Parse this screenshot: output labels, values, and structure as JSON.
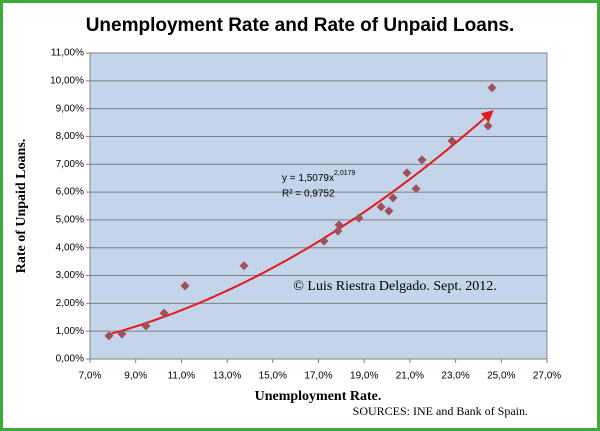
{
  "chart_data": {
    "type": "scatter",
    "title": "Unemployment Rate and Rate of Unpaid Loans.",
    "x_label": "Unemployment Rate.",
    "y_label": "Rate of Unpaid Loans.",
    "annotation": "© Luis Riestra Delgado. Sept. 2012.",
    "source": "SOURCES: INE and Bank of Spain.",
    "series": [
      {
        "color": "#a0505a",
        "x": [
          7.83,
          8.4,
          9.45,
          10.24,
          11.16,
          13.74,
          17.24,
          17.85,
          17.9,
          18.77,
          19.74,
          20.08,
          20.26,
          20.87,
          21.27,
          21.53,
          22.84,
          24.42,
          24.59
        ],
        "values": [
          0.83,
          0.9,
          1.19,
          1.65,
          2.63,
          3.35,
          4.24,
          4.6,
          4.82,
          5.07,
          5.47,
          5.32,
          5.79,
          6.69,
          6.12,
          7.16,
          7.84,
          8.38,
          9.75
        ]
      }
    ],
    "trendline": {
      "color": "#e31a1a",
      "coefficient": 1.5079,
      "exponent": 2.0179,
      "equation_label": "y = 1,5079x",
      "exponent_label": "2,0179",
      "r2_label": "R² = 0,9752"
    },
    "xlim": [
      7,
      27
    ],
    "xticks": [
      {
        "value": 7,
        "label": "7,0%"
      },
      {
        "value": 9,
        "label": "9,0%"
      },
      {
        "value": 11,
        "label": "11,0%"
      },
      {
        "value": 13,
        "label": "13,0%"
      },
      {
        "value": 15,
        "label": "15,0%"
      },
      {
        "value": 17,
        "label": "17,0%"
      },
      {
        "value": 19,
        "label": "19,0%"
      },
      {
        "value": 21,
        "label": "21,0%"
      },
      {
        "value": 23,
        "label": "23,0%"
      },
      {
        "value": 25,
        "label": "25,0%"
      },
      {
        "value": 27,
        "label": "27,0%"
      }
    ],
    "ylim": [
      0,
      11
    ],
    "yticks": [
      {
        "value": 0,
        "label": "0,00%"
      },
      {
        "value": 1,
        "label": "1,00%"
      },
      {
        "value": 2,
        "label": "2,00%"
      },
      {
        "value": 3,
        "label": "3,00%"
      },
      {
        "value": 4,
        "label": "4,00%"
      },
      {
        "value": 5,
        "label": "5,00%"
      },
      {
        "value": 6,
        "label": "6,00%"
      },
      {
        "value": 7,
        "label": "7,00%"
      },
      {
        "value": 8,
        "label": "8,00%"
      },
      {
        "value": 9,
        "label": "9,00%"
      },
      {
        "value": 10,
        "label": "10,00%"
      },
      {
        "value": 11,
        "label": "11,00%"
      }
    ],
    "grid": true,
    "plot_background": "#c3d4eb"
  }
}
